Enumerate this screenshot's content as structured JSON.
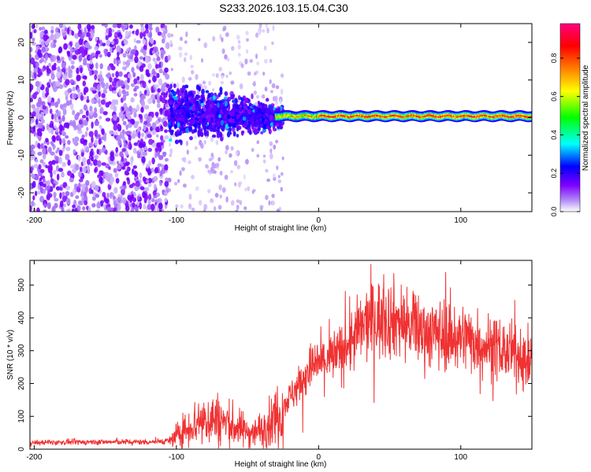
{
  "title": "S233.2026.103.15.04.C30",
  "chart_data": [
    {
      "type": "heatmap",
      "panel": "top",
      "xlabel": "Height of straight line (km)",
      "ylabel": "Frequency (Hz)",
      "xlim": [
        -203,
        150
      ],
      "ylim": [
        -25,
        25
      ],
      "xticks": [
        -200,
        -100,
        0,
        100
      ],
      "yticks": [
        -20,
        -10,
        0,
        10,
        20
      ],
      "colorbar": {
        "label": "Normalized spectral amplitude",
        "range": [
          0,
          0.98
        ],
        "ticks": [
          0.0,
          0.2,
          0.4,
          0.6,
          0.8
        ],
        "tick_labels": [
          "0.0",
          "0.2",
          "0.4",
          "0.6",
          "0.8"
        ],
        "colormap": [
          "#ffffff",
          "#7f00ff",
          "#0000ff",
          "#00ffff",
          "#00ff00",
          "#ffff00",
          "#ff7f00",
          "#ff0000",
          "#ff0080"
        ]
      },
      "description_points": [
        {
          "x_range": [
            -203,
            -105
          ],
          "freq_range": [
            -25,
            25
          ],
          "amplitude": 0.07
        },
        {
          "x_range": [
            -105,
            -30
          ],
          "freq_range": [
            -8,
            10
          ],
          "amplitude": 0.15
        },
        {
          "x_range": [
            -30,
            150
          ],
          "freq_range": [
            -1.5,
            1.5
          ],
          "amplitude": 0.8
        }
      ]
    },
    {
      "type": "line",
      "panel": "bottom",
      "xlabel": "Height of straight line (km)",
      "ylabel": "SNR (10 * v/v)",
      "xlim": [
        -203,
        150
      ],
      "ylim": [
        0,
        575
      ],
      "xticks": [
        -200,
        -100,
        0,
        100
      ],
      "yticks": [
        0,
        100,
        200,
        300,
        400,
        500
      ],
      "color": "#f03232",
      "series": [
        {
          "name": "SNR",
          "x": [
            -200,
            -180,
            -160,
            -140,
            -120,
            -105,
            -95,
            -85,
            -75,
            -65,
            -55,
            -45,
            -35,
            -25,
            -15,
            -5,
            5,
            15,
            25,
            35,
            45,
            55,
            65,
            75,
            85,
            95,
            105,
            115,
            125,
            135,
            150
          ],
          "values": [
            20,
            21,
            22,
            22,
            22,
            25,
            55,
            85,
            95,
            80,
            60,
            50,
            75,
            130,
            190,
            250,
            270,
            290,
            340,
            390,
            400,
            395,
            370,
            360,
            350,
            345,
            340,
            320,
            310,
            290,
            270
          ]
        }
      ]
    }
  ]
}
